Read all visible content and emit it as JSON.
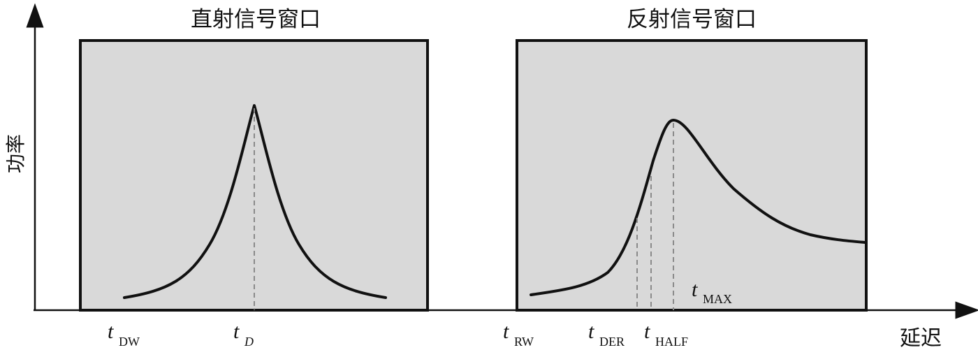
{
  "axes": {
    "y_label": "功率",
    "x_label": "延迟"
  },
  "windows": {
    "direct": {
      "title": "直射信号窗口",
      "fill": "#d9d9d9"
    },
    "reflected": {
      "title": "反射信号窗口",
      "fill": "#d9d9d9"
    }
  },
  "markers": {
    "t_dw": {
      "t": "t",
      "sub": "DW"
    },
    "t_d": {
      "t": "t",
      "sub": "D"
    },
    "t_rw": {
      "t": "t",
      "sub": "RW"
    },
    "t_der": {
      "t": "t",
      "sub": "DER"
    },
    "t_half": {
      "t": "t",
      "sub": "HALF"
    },
    "t_max": {
      "t": "t",
      "sub": "MAX"
    }
  },
  "colors": {
    "axis": "#111111",
    "curve": "#111111",
    "dashed": "#8a8a8a"
  }
}
